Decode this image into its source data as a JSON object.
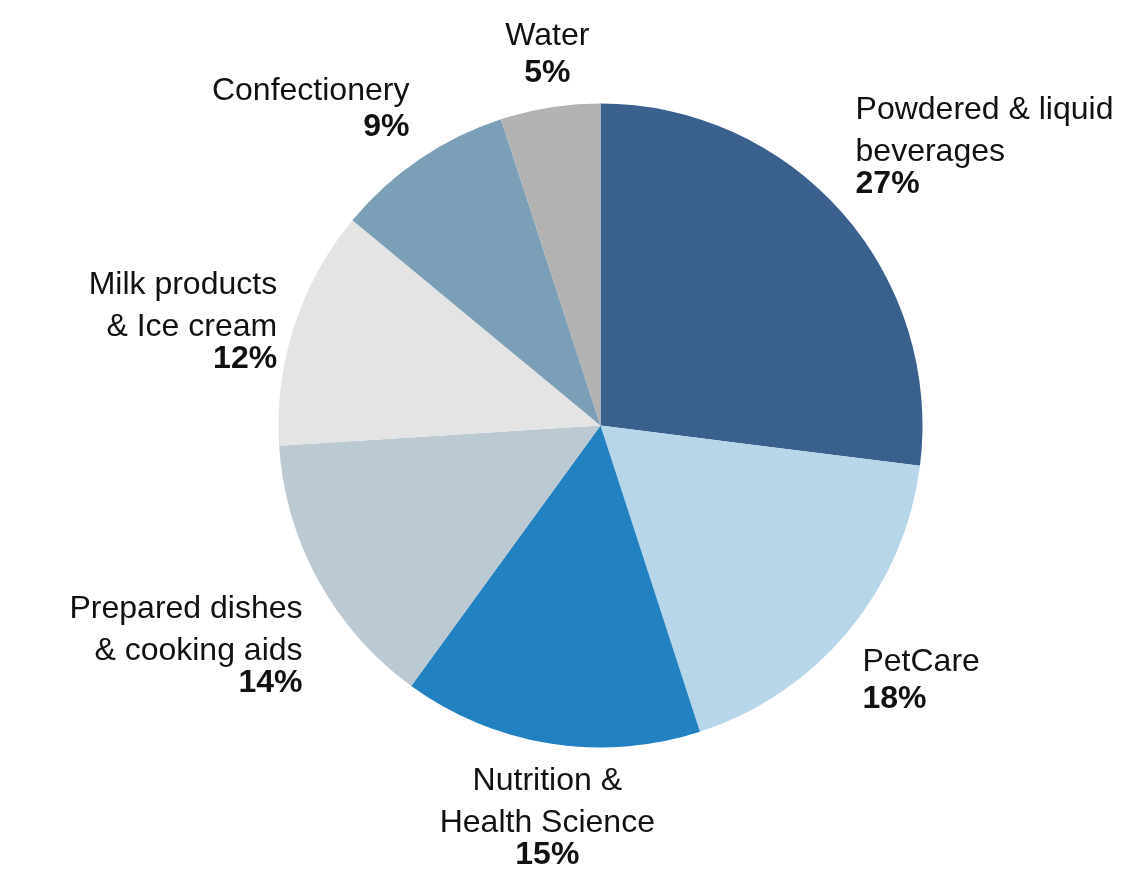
{
  "chart_data": {
    "type": "pie",
    "categories": [
      "Powdered & liquid\nbeverages",
      "PetCare",
      "Nutrition &\nHealth Science",
      "Prepared dishes\n& cooking aids",
      "Milk products\n& Ice cream",
      "Confectionery",
      "Water"
    ],
    "values": [
      27,
      18,
      15,
      14,
      12,
      9,
      5
    ],
    "colors": [
      "#3a608e",
      "#b7d6ea",
      "#2282c1",
      "#bbc9d3",
      "#e4e4e4",
      "#7b9fb6",
      "#b2b2b2"
    ],
    "value_labels": [
      "27%",
      "18%",
      "15%",
      "14%",
      "12%",
      "9%",
      "5%"
    ]
  }
}
